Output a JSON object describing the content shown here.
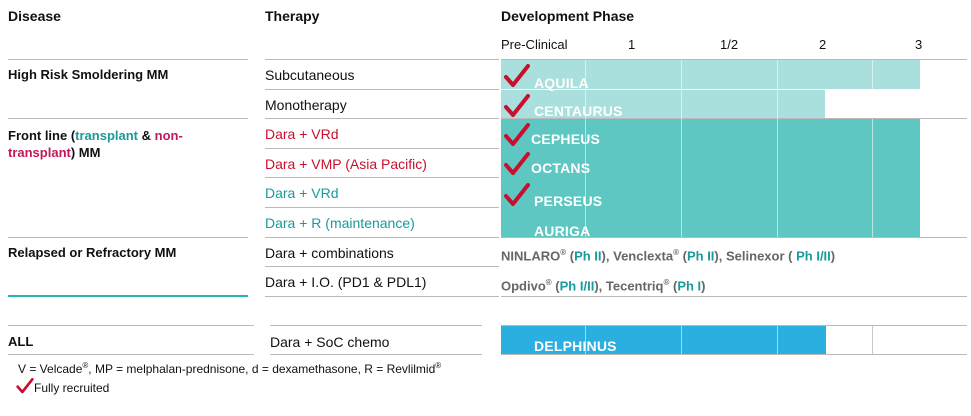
{
  "headers": {
    "disease": "Disease",
    "therapy": "Therapy",
    "phase": "Development Phase"
  },
  "phases": [
    "Pre-Clinical",
    "1",
    "1/2",
    "2",
    "3"
  ],
  "rows": {
    "high_risk": {
      "disease": "High Risk Smoldering MM",
      "therapies": [
        "Subcutaneous",
        "Monotherapy"
      ]
    },
    "front_line": {
      "p1": "Front line (",
      "transplant": "transplant",
      "amp": " & ",
      "non1": "non-",
      "non2": "transplant",
      "close": ") MM",
      "therapies": [
        "Dara + VRd",
        "Dara + VMP (Asia Pacific)",
        "Dara + VRd",
        "Dara + R (maintenance)"
      ]
    },
    "relapsed": {
      "disease": "Relapsed or Refractory MM",
      "therapies": [
        "Dara + combinations",
        "Dara + I.O. (PD1 & PDL1)"
      ]
    },
    "all": {
      "disease": "ALL",
      "therapies": [
        "Dara + SoC chemo"
      ]
    }
  },
  "trials": [
    "AQUILA",
    "CENTAURUS",
    "CEPHEUS",
    "OCTANS",
    "PERSEUS",
    "AURIGA",
    "DELPHINUS"
  ],
  "other_line1": {
    "ninlaro": "NINLARO",
    "reg": "®",
    "ph2a": "Ph II",
    "venclexta": "Venclexta",
    "ph2b": "Ph II",
    "selinexor": "Selinexor",
    "ph12": "Ph I/II",
    "open": " (",
    "close": ")",
    "comma": ", "
  },
  "other_line2": {
    "opdivo": "Opdivo",
    "reg": "®",
    "ph12": "Ph I/II",
    "tecentriq": "Tecentriq",
    "ph1": "Ph I",
    "open": " (",
    "close": ")",
    "comma": ", "
  },
  "footnote": {
    "text": "V = Velcade",
    "reg1": "®",
    "text2": ", MP = melphalan-prednisone, d = dexamethasone, R = Revlilmid",
    "reg2": "®",
    "legend": "Fully recruited"
  },
  "colors": {
    "check": "#c8102e",
    "teal_light": "#a9dfdc",
    "teal_dark": "#5fc7c2",
    "blue": "#2baee0"
  }
}
